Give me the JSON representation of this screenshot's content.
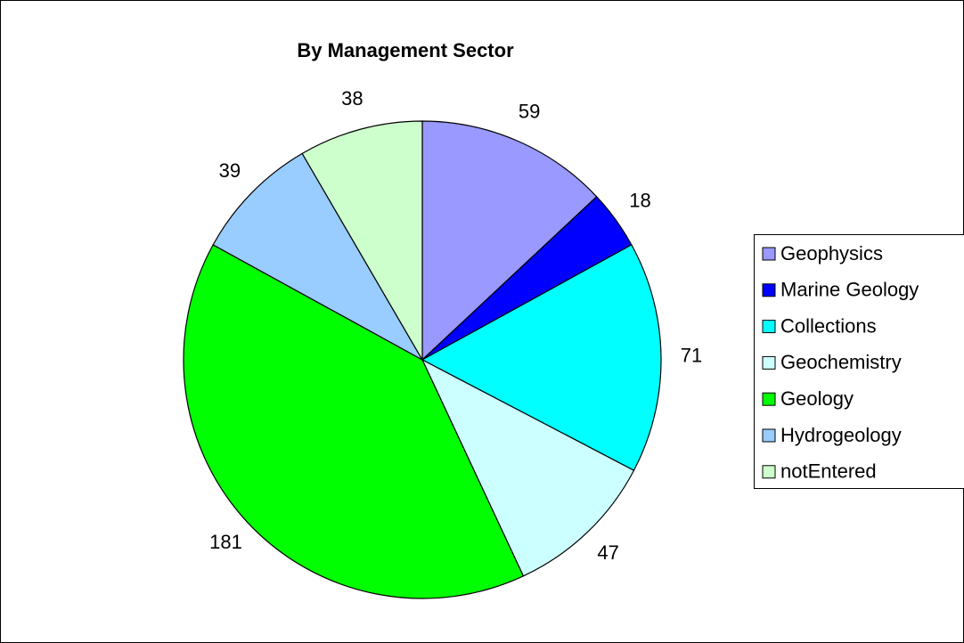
{
  "chart_data": {
    "type": "pie",
    "title": "By Management Sector",
    "categories": [
      "Geophysics",
      "Marine Geology",
      "Collections",
      "Geochemistry",
      "Geology",
      "Hydrogeology",
      "notEntered"
    ],
    "values": [
      59,
      18,
      71,
      47,
      181,
      39,
      38
    ],
    "colors": [
      "#9999ff",
      "#0000ff",
      "#00ffff",
      "#ccffff",
      "#00ff00",
      "#99ccff",
      "#ccffcc"
    ],
    "legend": "right"
  }
}
